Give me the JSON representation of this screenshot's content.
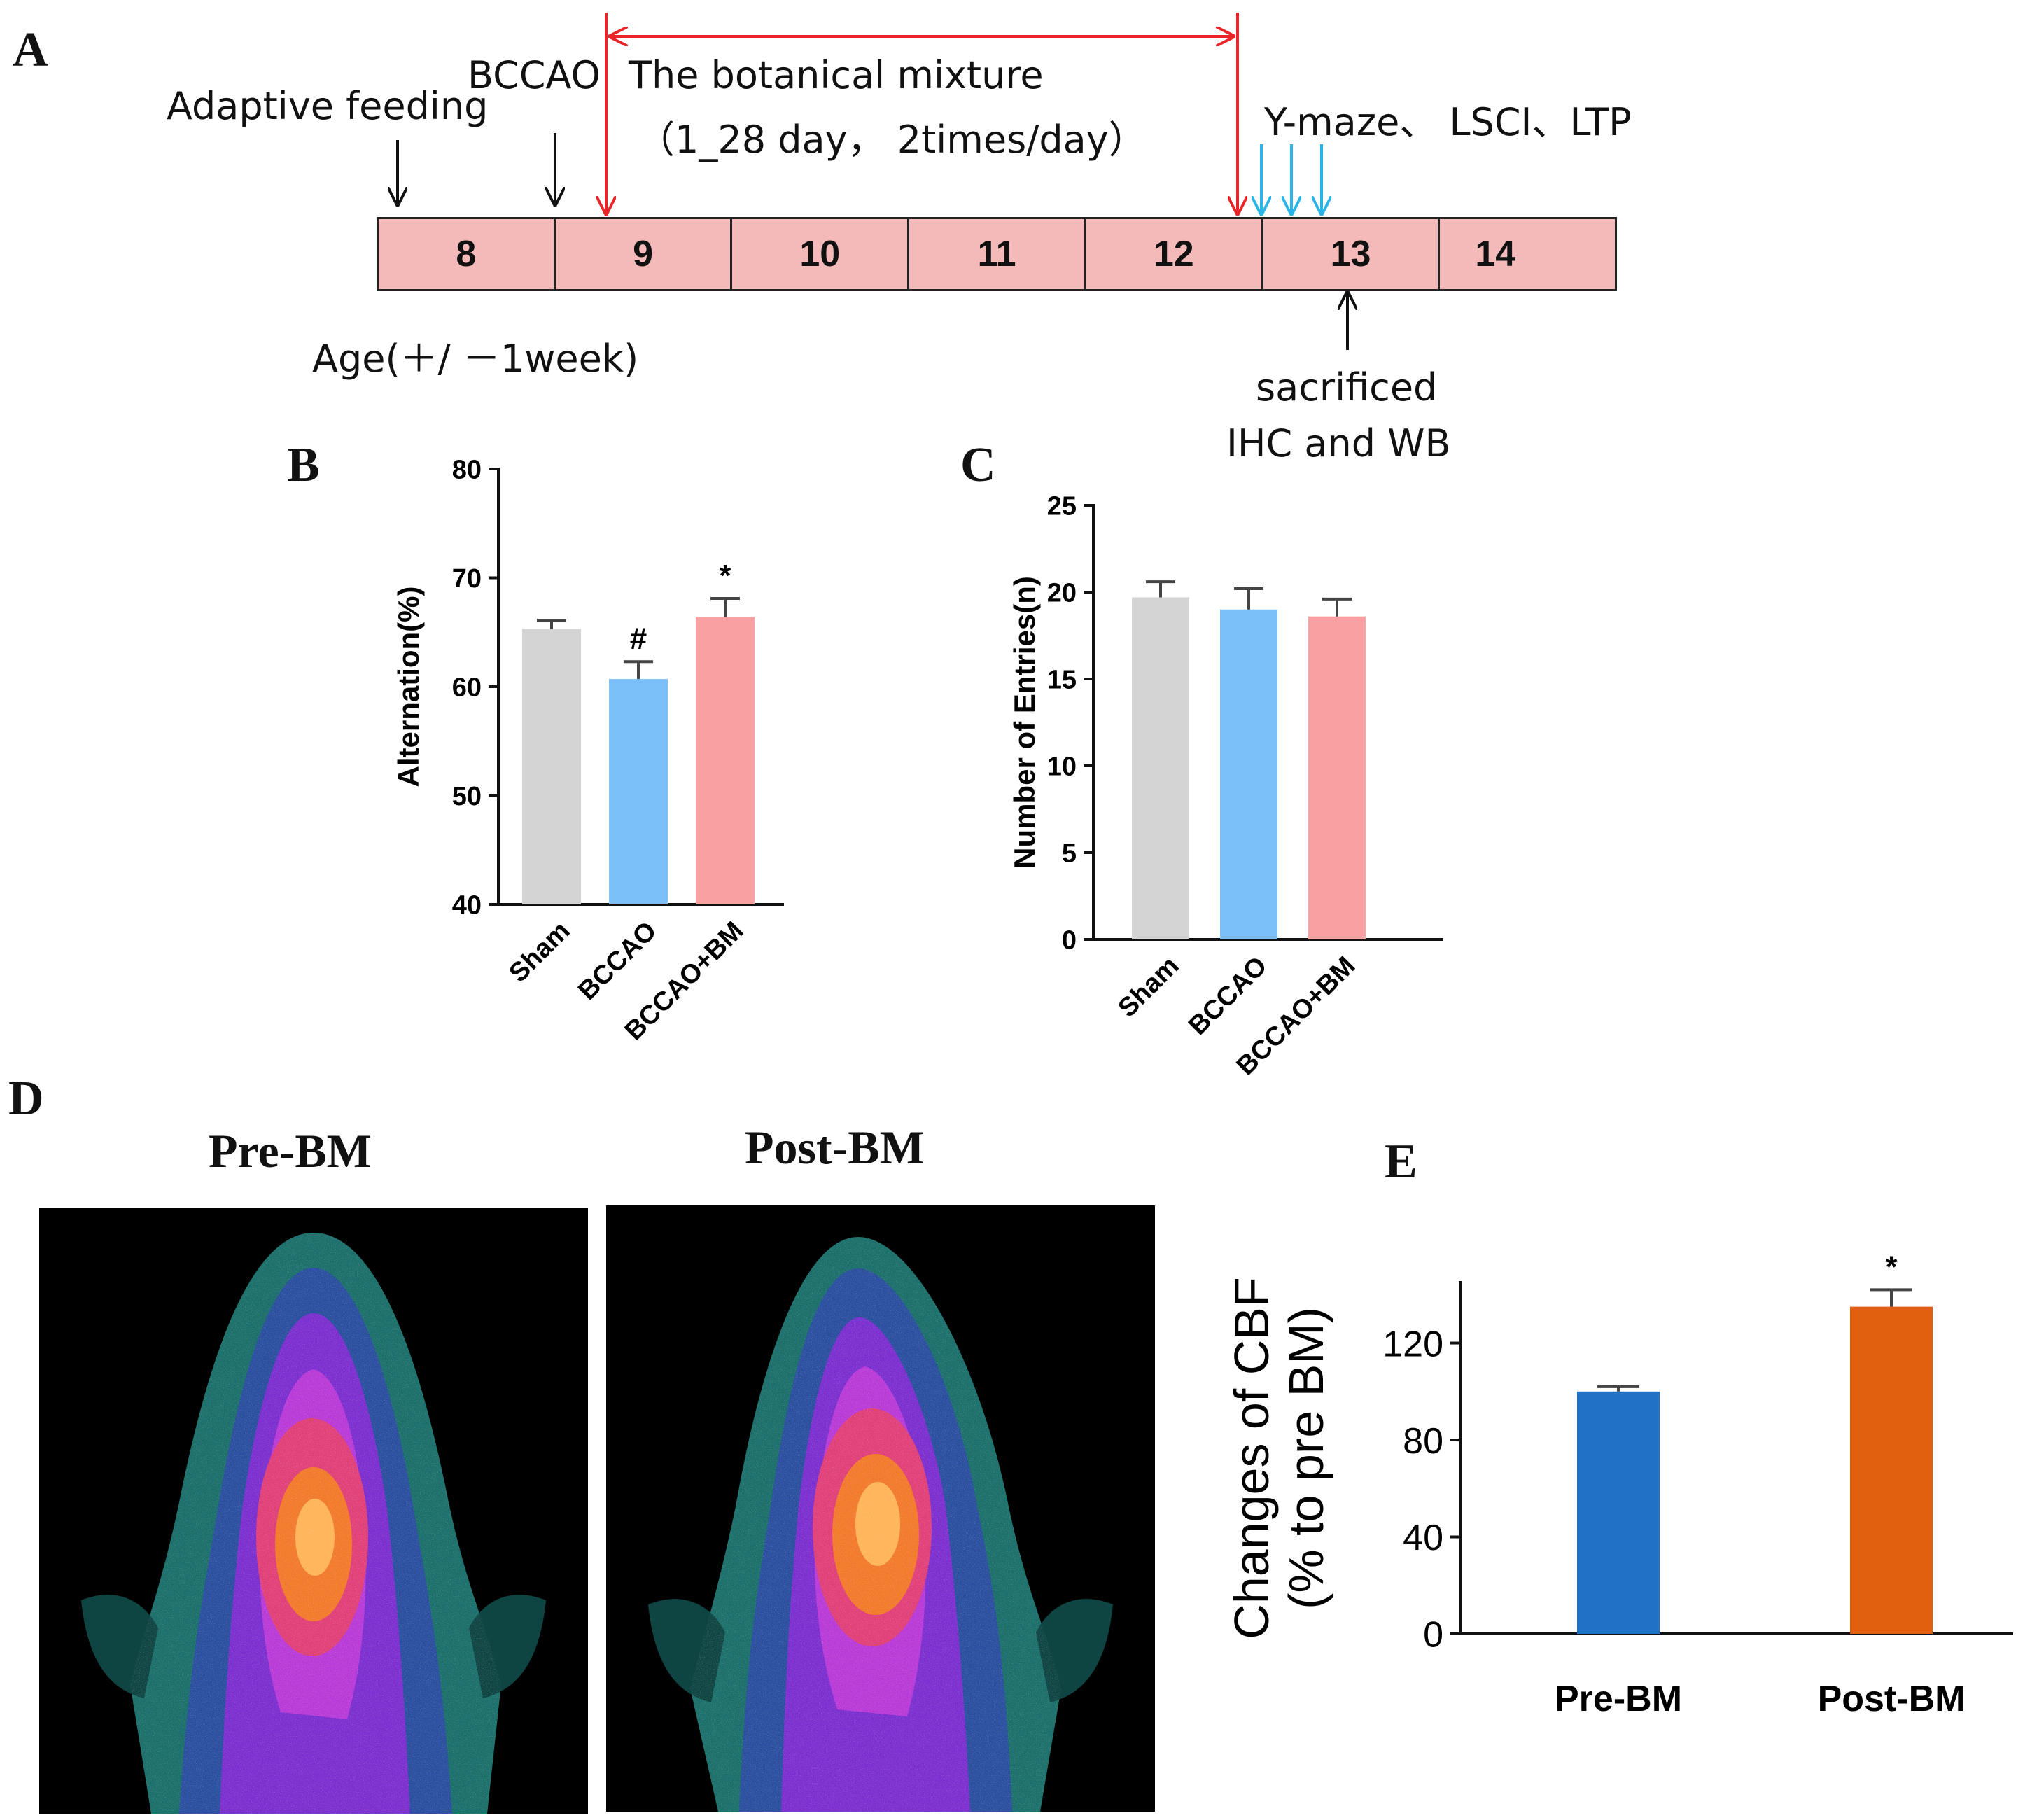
{
  "panel_a": {
    "letter": "A",
    "adaptive_feeding": "Adaptive feeding",
    "bccao": "BCCAO",
    "treatment_line1": "The  botanical mixture",
    "treatment_line2": "（1_28 day， 2times/day）",
    "tests": "Y-maze、 LSCI、LTP",
    "age_weeks": [
      "8",
      "9",
      "10",
      "11",
      "12",
      "13",
      "14"
    ],
    "age_label": "Age(＋/ －1week)",
    "sacrificed_line1": "sacrificed",
    "sacrificed_line2": "IHC and WB",
    "colors": {
      "timeline": "#f4b9b9",
      "treatment_arrow": "#e8262a",
      "test_arrow": "#2ab4e8",
      "arrow": "#111111"
    }
  },
  "panel_d": {
    "letter": "D",
    "pre_title": "Pre-BM",
    "post_title": "Post-BM"
  },
  "chart_data": [
    {
      "panel": "B",
      "type": "bar",
      "categories": [
        "Sham",
        "BCCAO",
        "BCCAO+BM"
      ],
      "values": [
        65.3,
        60.7,
        66.4
      ],
      "errors": [
        0.8,
        1.6,
        1.7
      ],
      "annotations": [
        "",
        "#",
        "*"
      ],
      "colors": [
        "#d4d4d4",
        "#7bbff8",
        "#f9a0a2"
      ],
      "ylabel": "Alternation(%)",
      "ylim": [
        40,
        80
      ],
      "yticks": [
        40,
        50,
        60,
        70,
        80
      ]
    },
    {
      "panel": "C",
      "type": "bar",
      "categories": [
        "Sham",
        "BCCAO",
        "BCCAO+BM"
      ],
      "values": [
        19.7,
        19.0,
        18.6
      ],
      "errors": [
        0.9,
        1.2,
        1.0
      ],
      "annotations": [
        "",
        "",
        ""
      ],
      "colors": [
        "#d4d4d4",
        "#7bbff8",
        "#f9a0a2"
      ],
      "ylabel": "Number of Entries(n)",
      "ylim": [
        0,
        25
      ],
      "yticks": [
        0,
        5,
        10,
        15,
        20,
        25
      ]
    },
    {
      "panel": "E",
      "type": "bar",
      "categories": [
        "Pre-BM",
        "Post-BM"
      ],
      "values": [
        100,
        135
      ],
      "errors": [
        2,
        7
      ],
      "annotations": [
        "",
        "*"
      ],
      "colors": [
        "#1f72c6",
        "#e06010"
      ],
      "ylabel_line1": "Changes of CBF",
      "ylabel_line2": "(% to pre BM)",
      "ylim": [
        0,
        145
      ],
      "yticks": [
        0,
        40,
        80,
        120
      ]
    }
  ]
}
